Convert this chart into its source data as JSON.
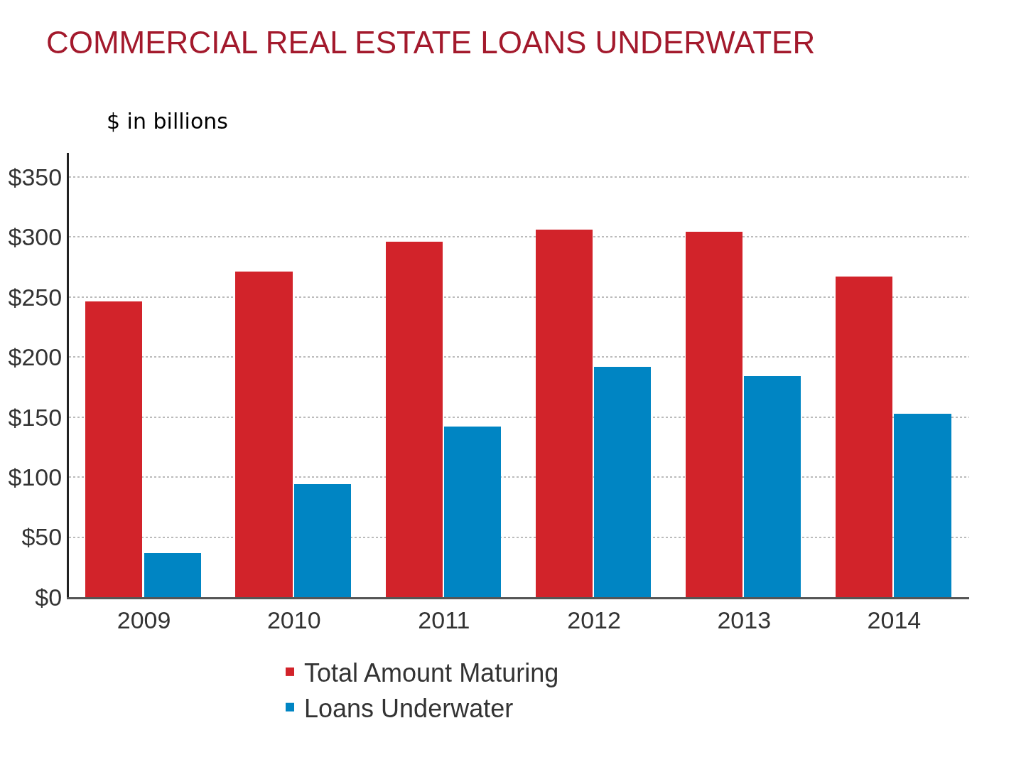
{
  "chart_data": {
    "type": "bar",
    "title": "COMMERCIAL REAL ESTATE LOANS UNDERWATER",
    "annotations": [
      "$ in billions"
    ],
    "categories": [
      "2009",
      "2010",
      "2011",
      "2012",
      "2013",
      "2014"
    ],
    "series": [
      {
        "name": "Total Amount Maturing",
        "color": "#d2232a",
        "values": [
          246,
          271,
          296,
          306,
          304,
          267
        ]
      },
      {
        "name": "Loans Underwater",
        "color": "#0085c3",
        "values": [
          37,
          94,
          142,
          192,
          184,
          153
        ]
      }
    ],
    "ylim": [
      0,
      370
    ],
    "yticks": [
      {
        "value": 0,
        "label": "$0"
      },
      {
        "value": 50,
        "label": "$50"
      },
      {
        "value": 100,
        "label": "$100"
      },
      {
        "value": 150,
        "label": "$150"
      },
      {
        "value": 200,
        "label": "$200"
      },
      {
        "value": 250,
        "label": "$250"
      },
      {
        "value": 300,
        "label": "$300"
      },
      {
        "value": 350,
        "label": "$350"
      }
    ],
    "grid": "y",
    "legend": "bottom"
  }
}
